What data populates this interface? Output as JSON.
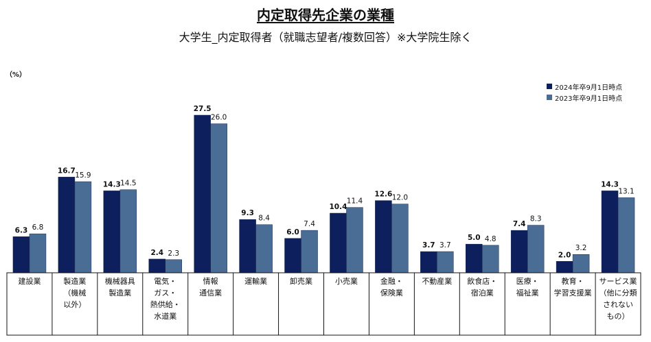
{
  "chart_data": {
    "type": "bar",
    "title": "内定取得先企業の業種",
    "subtitle": "大学生_内定取得者（就職志望者/複数回答）※大学院生除く",
    "unit": "（%）",
    "categories": [
      [
        "建設業"
      ],
      [
        "製造業",
        "（機械",
        "以外）"
      ],
      [
        "機械器具",
        "製造業"
      ],
      [
        "電気・",
        "ガス・",
        "熱供給・",
        "水道業"
      ],
      [
        "情報",
        "通信業"
      ],
      [
        "運輸業"
      ],
      [
        "卸売業"
      ],
      [
        "小売業"
      ],
      [
        "金融・",
        "保険業"
      ],
      [
        "不動産業"
      ],
      [
        "飲食店・",
        "宿泊業"
      ],
      [
        "医療・",
        "福祉業"
      ],
      [
        "教育・",
        "学習支援業"
      ],
      [
        "サービス業",
        "（他に分類",
        "されない",
        "もの）"
      ]
    ],
    "series": [
      {
        "name": "2024年卒9月1日時点",
        "color": "#0d1f5c",
        "values": [
          6.3,
          16.7,
          14.3,
          2.4,
          27.5,
          9.3,
          6.0,
          10.4,
          12.6,
          3.7,
          5.0,
          7.4,
          2.0,
          14.3
        ]
      },
      {
        "name": "2023年卒9月1日時点",
        "color": "#4a6d96",
        "values": [
          6.8,
          15.9,
          14.5,
          2.3,
          26.0,
          8.4,
          7.4,
          11.4,
          12.0,
          3.7,
          4.8,
          8.3,
          3.2,
          13.1
        ]
      }
    ],
    "legend_position": "top-right",
    "grid": false
  }
}
